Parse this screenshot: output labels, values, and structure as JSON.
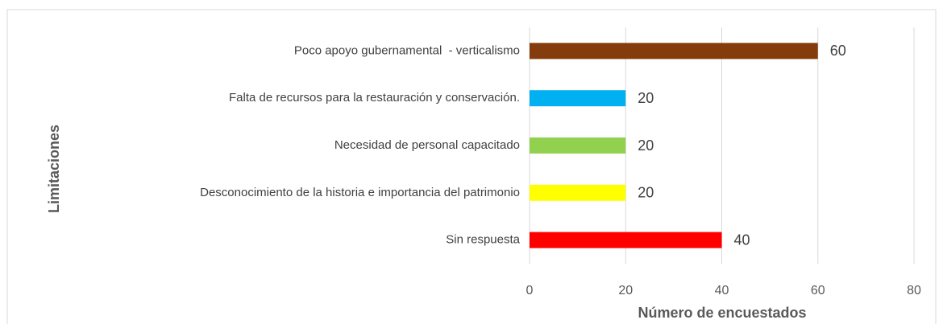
{
  "chart_data": {
    "type": "bar",
    "orientation": "horizontal",
    "x_label": "Número de encuestados",
    "y_label": "Limitaciones",
    "categories": [
      "Poco apoyo gubernamental  - verticalismo",
      "Falta de recursos para la restauración y conservación.",
      "Necesidad de personal capacitado",
      "Desconocimiento de la historia e importancia del patrimonio",
      "Sin respuesta"
    ],
    "values": [
      60,
      20,
      20,
      20,
      40
    ],
    "colors": [
      "#843c0c",
      "#00b0f0",
      "#92d050",
      "#ffff00",
      "#ff0000"
    ],
    "xlim": [
      0,
      80
    ],
    "xticks": [
      0,
      20,
      40,
      60,
      80
    ],
    "grid": true
  }
}
